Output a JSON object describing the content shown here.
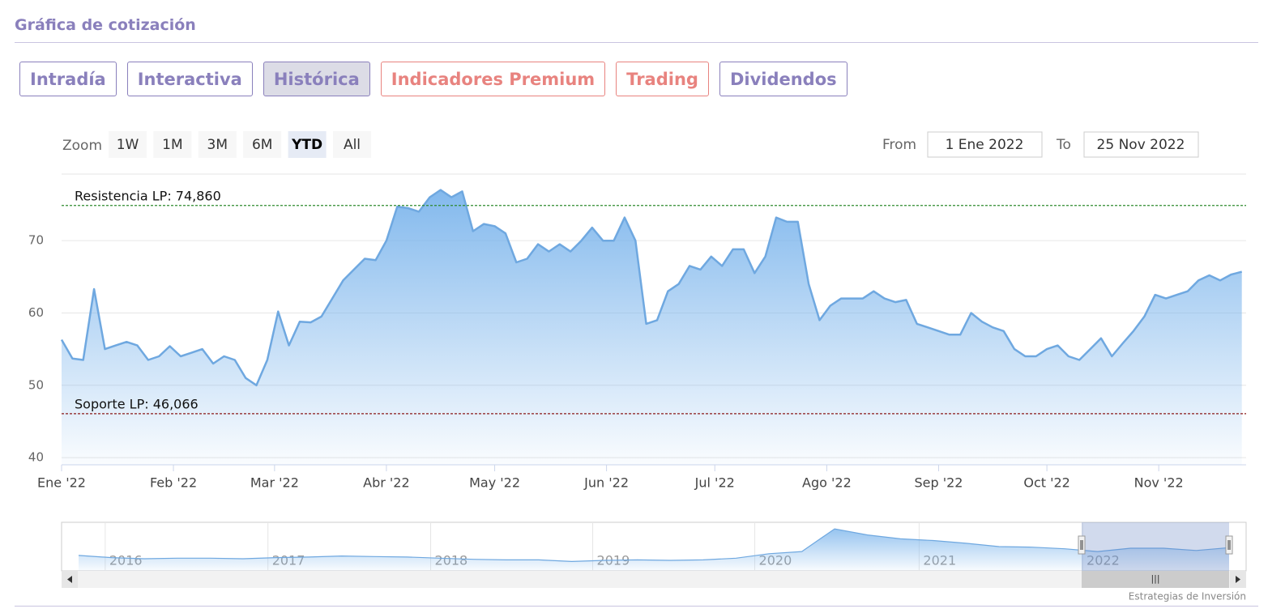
{
  "header": {
    "title": "Gráfica de cotización"
  },
  "tabs": {
    "items": [
      {
        "label": "Intradía",
        "color": "#8a80bc"
      },
      {
        "label": "Interactiva",
        "color": "#8a80bc"
      },
      {
        "label": "Histórica",
        "color": "#8a80bc"
      },
      {
        "label": "Indicadores Premium",
        "color": "#e8837f"
      },
      {
        "label": "Trading",
        "color": "#e8837f"
      },
      {
        "label": "Dividendos",
        "color": "#8a80bc"
      }
    ],
    "selected": 2
  },
  "range_selector": {
    "label": "Zoom",
    "buttons": [
      "1W",
      "1M",
      "3M",
      "6M",
      "YTD",
      "All"
    ],
    "selected": 4,
    "from_label": "From",
    "from": "1 Ene 2022",
    "to_label": "To",
    "to": "25 Nov 2022"
  },
  "chart_data": {
    "type": "area",
    "color": "#6fa8e0",
    "values": [
      56.3,
      53.7,
      53.5,
      63.3,
      55,
      55.5,
      56,
      55.5,
      53.5,
      54,
      55.4,
      54,
      54.5,
      55,
      53,
      54,
      53.5,
      51,
      50,
      53.5,
      60.2,
      55.5,
      58.8,
      58.7,
      59.5,
      62,
      64.5,
      66,
      67.5,
      67.3,
      70,
      74.7,
      74.5,
      74,
      76,
      77,
      76,
      76.8,
      71.3,
      72.3,
      72,
      71,
      67,
      67.5,
      69.5,
      68.5,
      69.5,
      68.5,
      70,
      71.8,
      70,
      70,
      73.2,
      70,
      58.5,
      59,
      63,
      64,
      66.5,
      66,
      67.8,
      66.5,
      68.8,
      68.8,
      65.5,
      67.8,
      73.2,
      72.6,
      72.6,
      64,
      59,
      61,
      62,
      62,
      62,
      63,
      62,
      61.5,
      61.8,
      58.5,
      58,
      57.5,
      57,
      57,
      60,
      58.8,
      58,
      57.5,
      55,
      54,
      54,
      55,
      55.5,
      54,
      53.5,
      55,
      56.5,
      54,
      55.8,
      57.5,
      59.5,
      62.5,
      62,
      62.5,
      63,
      64.5,
      65.2,
      64.5,
      65.3,
      65.7
    ],
    "xlim": [
      0,
      109.4
    ],
    "xticks": [
      {
        "value": 0,
        "label": "Ene '22"
      },
      {
        "value": 10.33,
        "label": "Feb '22"
      },
      {
        "value": 19.67,
        "label": "Mar '22"
      },
      {
        "value": 30,
        "label": "Abr '22"
      },
      {
        "value": 40,
        "label": "May '22"
      },
      {
        "value": 50.33,
        "label": "Jun '22"
      },
      {
        "value": 60.33,
        "label": "Jul '22"
      },
      {
        "value": 70.67,
        "label": "Ago '22"
      },
      {
        "value": 81,
        "label": "Sep '22"
      },
      {
        "value": 91,
        "label": "Oct '22"
      },
      {
        "value": 101.33,
        "label": "Nov '22"
      }
    ],
    "ylim": [
      39,
      79.2
    ],
    "yticks": [
      40,
      50,
      60,
      70
    ],
    "grid": true,
    "plot_lines": [
      {
        "label": "Resistencia LP: 74,860",
        "value": 74.86,
        "color": "#2e8b2e"
      },
      {
        "label": "Soporte LP: 46,066",
        "value": 46.066,
        "color": "#8b1a1a"
      }
    ],
    "navigator": {
      "values": [
        48,
        44,
        42,
        43,
        43,
        42,
        44,
        45,
        47,
        46,
        45,
        43,
        41,
        40,
        40,
        37,
        39,
        40,
        39,
        40,
        43,
        51,
        55,
        96,
        85,
        78,
        75,
        70,
        64,
        63,
        60,
        55,
        61,
        61,
        57,
        62
      ],
      "xlim": [
        0,
        35
      ],
      "ylim": [
        20,
        105
      ],
      "xticks": [
        {
          "value": 0.81,
          "label": "2016"
        },
        {
          "value": 5.76,
          "label": "2017"
        },
        {
          "value": 10.71,
          "label": "2018"
        },
        {
          "value": 15.64,
          "label": "2019"
        },
        {
          "value": 20.57,
          "label": "2020"
        },
        {
          "value": 25.57,
          "label": "2021"
        },
        {
          "value": 30.54,
          "label": "2022"
        }
      ]
    },
    "credits": "Estrategias de Inversión"
  }
}
